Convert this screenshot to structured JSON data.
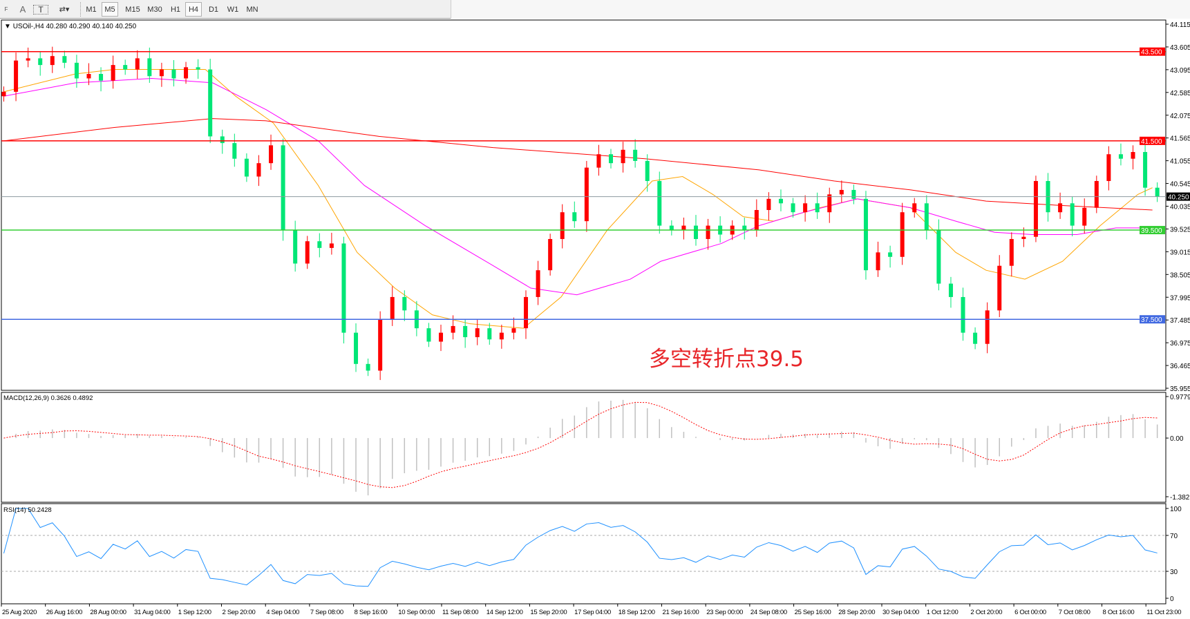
{
  "toolbar": {
    "tools": [
      {
        "name": "fibo-icon",
        "label": "F"
      },
      {
        "name": "text-icon",
        "label": "A"
      },
      {
        "name": "text-label-icon",
        "label": "T"
      },
      {
        "name": "arrows-icon",
        "label": "▾"
      }
    ],
    "timeframes": [
      "M1",
      "M5",
      "M15",
      "M30",
      "H1",
      "H4",
      "D1",
      "W1",
      "MN"
    ],
    "selected": "H4",
    "hover": "M5"
  },
  "main": {
    "legend": "USOil-,H4  40.280 40.290 40.140 40.250",
    "annotation": "多空转折点39.5",
    "current_price": "40.250"
  },
  "colors": {
    "bull": "#ff0000",
    "bear": "#00e676",
    "ma_fast": "#ffa500",
    "ma_mid": "#ff00ff",
    "ma_slow": "#ff0000",
    "level_red": "#ff0000",
    "level_green": "#32cd32",
    "level_blue": "#4169e1",
    "rsi": "#1e90ff",
    "macd_signal": "#ff0000",
    "macd_hist": "#c0c0c0"
  },
  "chart_data": [
    {
      "type": "candlestick",
      "symbol": "USOil-",
      "timeframe": "H4",
      "ylim": [
        35.955,
        44.115
      ],
      "yticks": [
        "44.115",
        "43.605",
        "43.095",
        "42.585",
        "42.075",
        "41.565",
        "41.055",
        "40.545",
        "40.035",
        "39.525",
        "39.015",
        "38.505",
        "37.995",
        "37.485",
        "36.975",
        "36.465",
        "35.955"
      ],
      "xticks": [
        "25 Aug 2020",
        "26 Aug 16:00",
        "28 Aug 00:00",
        "31 Aug 04:00",
        "1 Sep 12:00",
        "2 Sep 20:00",
        "4 Sep 04:00",
        "7 Sep 08:00",
        "8 Sep 16:00",
        "10 Sep 00:00",
        "11 Sep 08:00",
        "14 Sep 12:00",
        "15 Sep 20:00",
        "17 Sep 04:00",
        "18 Sep 12:00",
        "21 Sep 16:00",
        "23 Sep 00:00",
        "24 Sep 08:00",
        "25 Sep 16:00",
        "28 Sep 20:00",
        "30 Sep 04:00",
        "1 Oct 12:00",
        "2 Oct 20:00",
        "6 Oct 00:00",
        "7 Oct 08:00",
        "8 Oct 16:00",
        "11 Oct 23:00"
      ],
      "first_open": 42.5,
      "close": [
        42.6,
        43.3,
        43.35,
        43.2,
        43.4,
        43.25,
        42.9,
        43.0,
        42.85,
        43.2,
        43.1,
        43.35,
        42.95,
        43.1,
        42.9,
        43.15,
        43.1,
        41.6,
        41.45,
        41.1,
        40.7,
        41.0,
        41.4,
        39.5,
        38.75,
        39.25,
        39.1,
        39.2,
        37.2,
        36.5,
        36.35,
        37.5,
        38.0,
        37.7,
        37.3,
        37.0,
        37.2,
        37.35,
        37.1,
        37.3,
        37.05,
        37.2,
        37.3,
        38.0,
        38.6,
        39.3,
        39.9,
        39.7,
        40.9,
        41.2,
        41.0,
        41.3,
        41.05,
        40.6,
        39.6,
        39.5,
        39.6,
        39.3,
        39.6,
        39.4,
        39.6,
        39.5,
        39.95,
        40.2,
        40.1,
        39.9,
        40.1,
        39.9,
        40.3,
        40.4,
        40.2,
        38.6,
        39.0,
        38.9,
        39.9,
        40.1,
        39.5,
        38.3,
        38.0,
        37.2,
        36.95,
        37.7,
        38.7,
        39.3,
        39.35,
        40.6,
        39.9,
        40.1,
        39.6,
        40.0,
        40.6,
        41.2,
        41.1,
        41.25,
        40.45,
        40.25
      ],
      "levels": [
        {
          "price": 43.5,
          "label": "43.500",
          "color": "#ff0000"
        },
        {
          "price": 41.5,
          "label": "41.500",
          "color": "#ff0000"
        },
        {
          "price": 39.5,
          "label": "39.500",
          "color": "#32cd32"
        },
        {
          "price": 37.5,
          "label": "37.500",
          "color": "#4169e1"
        }
      ],
      "moving_averages": [
        {
          "color": "#ffa500",
          "points": [
            [
              0,
              42.6
            ],
            [
              5.9,
              43.0
            ],
            [
              9.1,
              43.1
            ],
            [
              16.6,
              43.1
            ],
            [
              19.1,
              42.5
            ],
            [
              22.2,
              41.9
            ],
            [
              25.9,
              40.5
            ],
            [
              29.1,
              39.0
            ],
            [
              32.2,
              38.2
            ],
            [
              35.3,
              37.6
            ],
            [
              38.4,
              37.4
            ],
            [
              42.8,
              37.3
            ],
            [
              45.9,
              38.0
            ],
            [
              49.7,
              39.5
            ],
            [
              53.4,
              40.6
            ],
            [
              55.9,
              40.7
            ],
            [
              58.4,
              40.3
            ],
            [
              60.9,
              39.8
            ],
            [
              63.4,
              39.7
            ],
            [
              67.2,
              40.0
            ],
            [
              70.3,
              40.2
            ],
            [
              74.7,
              40.0
            ],
            [
              78.4,
              39.0
            ],
            [
              80.9,
              38.6
            ],
            [
              84.1,
              38.4
            ],
            [
              87.2,
              38.8
            ],
            [
              90.3,
              39.6
            ],
            [
              93.4,
              40.3
            ],
            [
              94.6,
              40.45
            ]
          ]
        },
        {
          "color": "#ff00ff",
          "points": [
            [
              0,
              42.5
            ],
            [
              5.9,
              42.8
            ],
            [
              12.2,
              42.9
            ],
            [
              17.2,
              42.8
            ],
            [
              21.6,
              42.2
            ],
            [
              25.9,
              41.5
            ],
            [
              29.7,
              40.5
            ],
            [
              34.7,
              39.6
            ],
            [
              39.7,
              38.8
            ],
            [
              43.4,
              38.2
            ],
            [
              47.2,
              38.05
            ],
            [
              51.6,
              38.4
            ],
            [
              54.1,
              38.8
            ],
            [
              59.1,
              39.2
            ],
            [
              62.2,
              39.6
            ],
            [
              65.9,
              39.9
            ],
            [
              70.3,
              40.2
            ],
            [
              74.7,
              40.0
            ],
            [
              78.4,
              39.7
            ],
            [
              81.6,
              39.45
            ],
            [
              84.7,
              39.4
            ],
            [
              88.4,
              39.4
            ],
            [
              91.6,
              39.55
            ],
            [
              94.6,
              39.55
            ]
          ]
        },
        {
          "color": "#ff0000",
          "points": [
            [
              0,
              41.5
            ],
            [
              9.1,
              41.8
            ],
            [
              17.2,
              42.0
            ],
            [
              21.6,
              41.95
            ],
            [
              30.9,
              41.6
            ],
            [
              40.3,
              41.35
            ],
            [
              52.8,
              41.1
            ],
            [
              62.2,
              40.85
            ],
            [
              68.4,
              40.6
            ],
            [
              74.7,
              40.4
            ],
            [
              80.9,
              40.15
            ],
            [
              87.2,
              40.05
            ],
            [
              94.6,
              39.95
            ]
          ]
        }
      ]
    },
    {
      "type": "bar+line",
      "title": "MACD(12,26,9) 0.3626 0.4892",
      "ylim": [
        -1.382,
        0.9779
      ],
      "yticks": [
        "0.9779",
        "0.00",
        "-1.382"
      ]
    },
    {
      "type": "line",
      "title": "RSI(14) 50.2428",
      "ylim": [
        0,
        100
      ],
      "yticks": [
        "100",
        "70",
        "30",
        "0"
      ],
      "levels": [
        70,
        30
      ]
    }
  ]
}
